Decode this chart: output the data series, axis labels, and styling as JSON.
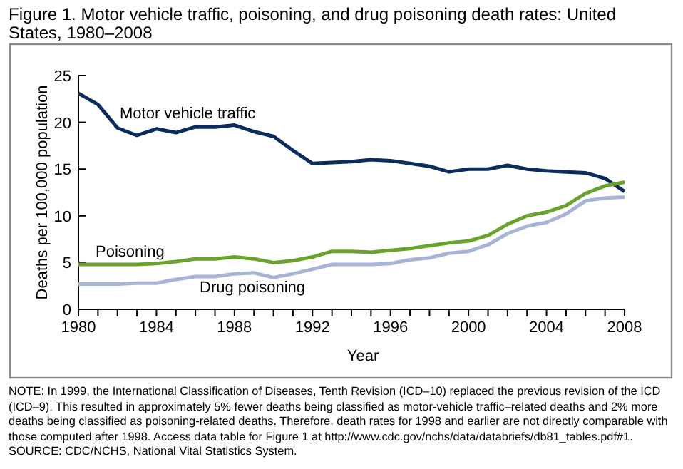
{
  "chart_data": {
    "type": "line",
    "title": "Figure 1. Motor vehicle traffic, poisoning, and drug poisoning death rates: United States, 1980–2008",
    "xlabel": "Year",
    "ylabel": "Deaths per 100,000 population",
    "x": [
      1980,
      1981,
      1982,
      1983,
      1984,
      1985,
      1986,
      1987,
      1988,
      1989,
      1990,
      1991,
      1992,
      1993,
      1994,
      1995,
      1996,
      1997,
      1998,
      1999,
      2000,
      2001,
      2002,
      2003,
      2004,
      2005,
      2006,
      2007,
      2008
    ],
    "series": [
      {
        "name": "Motor vehicle traffic",
        "color": "#0b2d5b",
        "values": [
          23.1,
          21.9,
          19.4,
          18.6,
          19.3,
          18.9,
          19.5,
          19.5,
          19.7,
          19.0,
          18.5,
          17.0,
          15.6,
          15.7,
          15.8,
          16.0,
          15.9,
          15.6,
          15.3,
          14.7,
          15.0,
          15.0,
          15.4,
          15.0,
          14.8,
          14.7,
          14.6,
          14.0,
          12.6
        ]
      },
      {
        "name": "Poisoning",
        "color": "#6aa22e",
        "values": [
          4.8,
          4.8,
          4.8,
          4.8,
          4.9,
          5.1,
          5.4,
          5.4,
          5.6,
          5.4,
          5.0,
          5.2,
          5.6,
          6.2,
          6.2,
          6.1,
          6.3,
          6.5,
          6.8,
          7.1,
          7.3,
          7.9,
          9.1,
          10.0,
          10.4,
          11.1,
          12.4,
          13.2,
          13.6
        ]
      },
      {
        "name": "Drug poisoning",
        "color": "#a6b4d6",
        "values": [
          2.7,
          2.7,
          2.7,
          2.8,
          2.8,
          3.2,
          3.5,
          3.5,
          3.8,
          3.9,
          3.4,
          3.8,
          4.3,
          4.8,
          4.8,
          4.8,
          4.9,
          5.3,
          5.5,
          6.0,
          6.2,
          6.9,
          8.1,
          8.9,
          9.3,
          10.2,
          11.6,
          11.9,
          12.0
        ]
      }
    ],
    "xlim": [
      1980,
      2008
    ],
    "xticks": [
      1980,
      {
        "value": 1981,
        "label": null
      },
      {
        "value": 1982,
        "label": null
      },
      {
        "value": 1983,
        "label": null
      },
      1984,
      {
        "value": 1985,
        "label": null
      },
      {
        "value": 1986,
        "label": null
      },
      {
        "value": 1987,
        "label": null
      },
      1988,
      {
        "value": 1989,
        "label": null
      },
      {
        "value": 1990,
        "label": null
      },
      {
        "value": 1991,
        "label": null
      },
      1992,
      {
        "value": 1993,
        "label": null
      },
      {
        "value": 1994,
        "label": null
      },
      {
        "value": 1995,
        "label": null
      },
      1996,
      {
        "value": 1997,
        "label": null
      },
      {
        "value": 1998,
        "label": null
      },
      {
        "value": 1999,
        "label": null
      },
      2000,
      {
        "value": 2001,
        "label": null
      },
      {
        "value": 2002,
        "label": null
      },
      {
        "value": 2003,
        "label": null
      },
      2004,
      {
        "value": 2005,
        "label": null
      },
      {
        "value": 2006,
        "label": null
      },
      {
        "value": 2007,
        "label": null
      },
      2008
    ],
    "ylim": [
      0,
      25
    ],
    "yticks": [
      0,
      5,
      10,
      15,
      20,
      25
    ],
    "grid": false,
    "legend": false,
    "marker": "none",
    "line_style": "solid",
    "annotations": [
      "NOTE: In 1999, the International Classification of Diseases, Tenth Revision (ICD–10) replaced the previous revision of the ICD (ICD–9). This resulted in approximately 5% fewer deaths being classified as motor-vehicle traffic–related deaths and 2% more deaths being classified as poisoning-related deaths. Therefore, death rates for 1998 and earlier are not directly comparable with those computed after 1998. Access data table for Figure 1 at http://www.cdc.gov/nchs/data/databriefs/db81_tables.pdf#1.",
      "SOURCE: CDC/NCHS, National Vital Statistics System."
    ]
  }
}
